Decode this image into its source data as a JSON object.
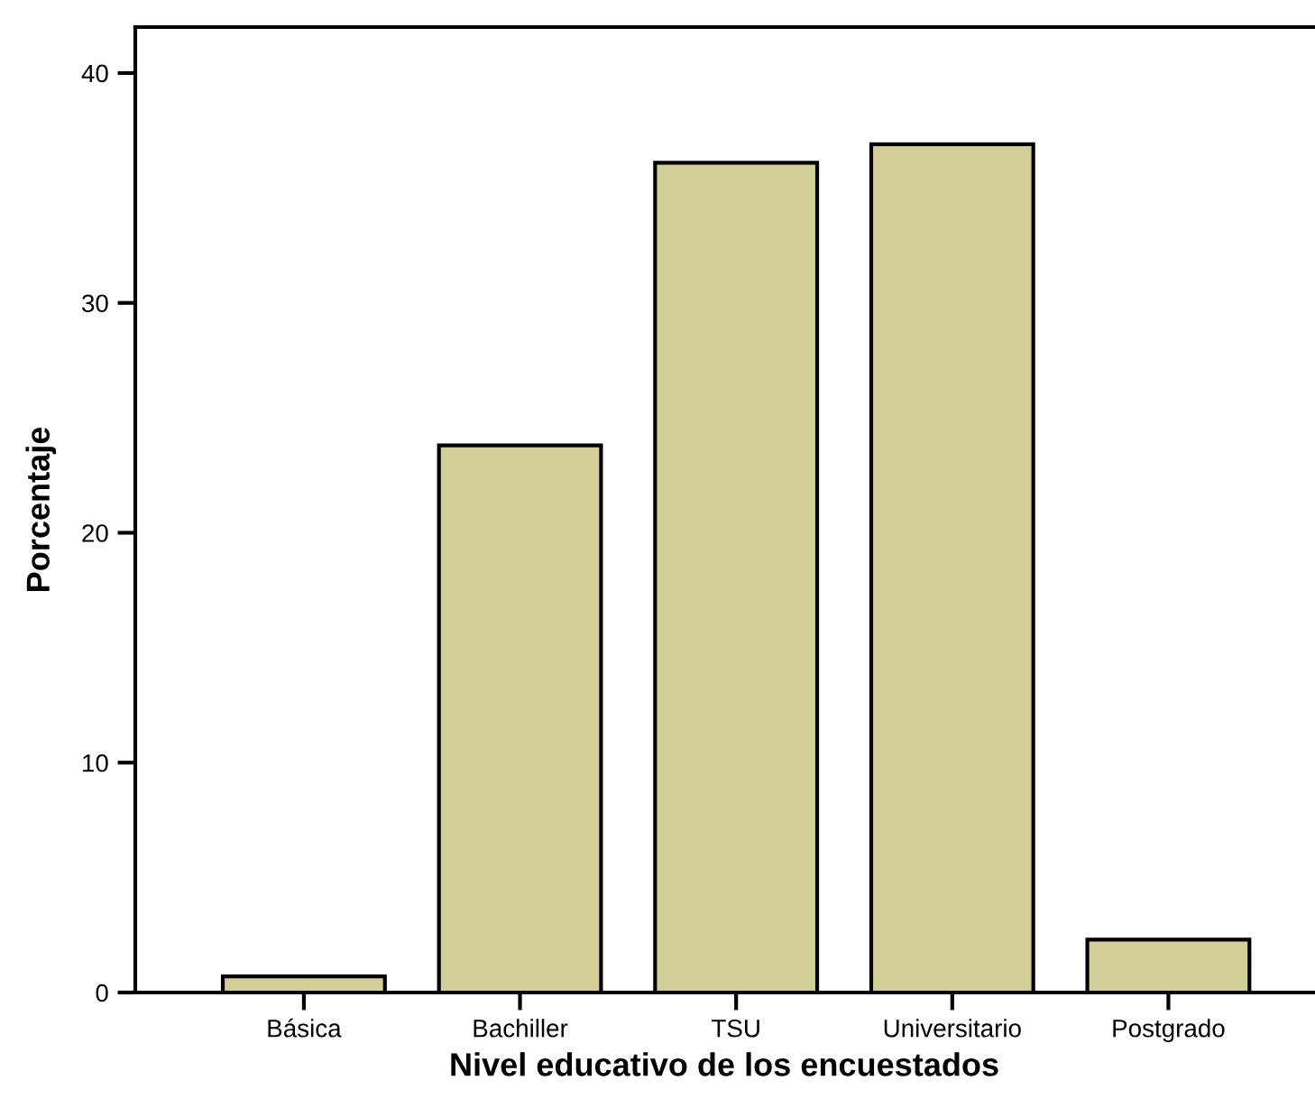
{
  "chart_data": {
    "type": "bar",
    "xlabel": "Nivel educativo de los encuestados",
    "ylabel": "Porcentaje",
    "categories": [
      "Básica",
      "Bachiller",
      "TSU",
      "Universitario",
      "Postgrado"
    ],
    "values": [
      0.7,
      23.8,
      36.1,
      36.9,
      2.3
    ],
    "color": "#d3cd97",
    "ylim": [
      0,
      42
    ],
    "yticks": [
      0,
      10,
      20,
      30,
      40
    ],
    "grid": false
  }
}
